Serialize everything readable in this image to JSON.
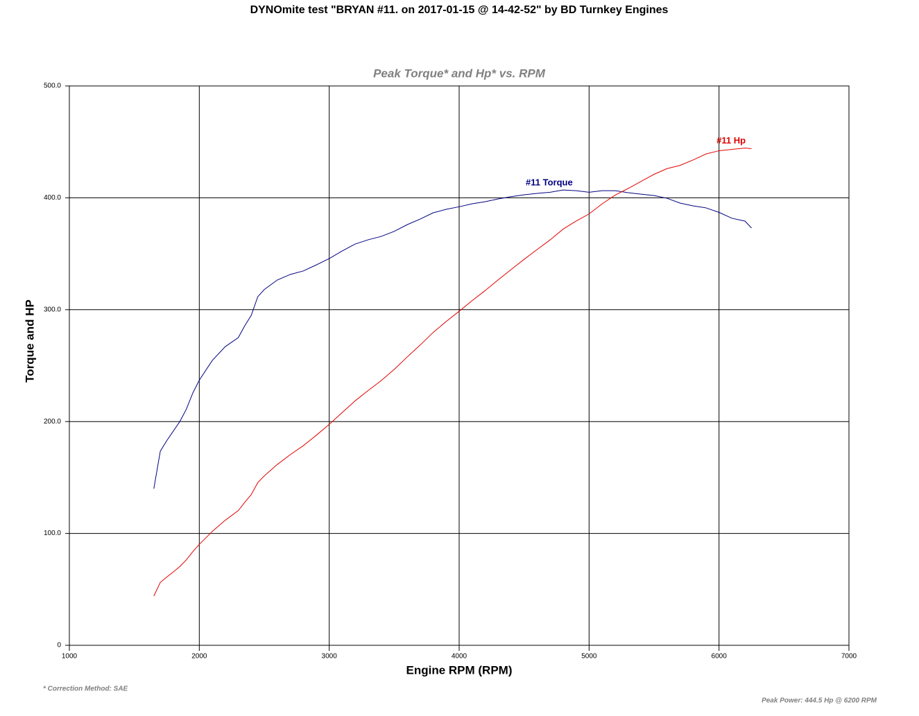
{
  "chart_data": {
    "type": "line",
    "title": "DYNOmite test \"BRYAN #11. on 2017-01-15 @ 14-42-52\" by BD Turnkey Engines",
    "subtitle": "Peak Torque* and Hp* vs. RPM",
    "x_label": "Engine RPM (RPM)",
    "y_label": "Torque and HP",
    "footnote": "* Correction Method: SAE",
    "peak_note": "Peak Power: 444.5 Hp @ 6200 RPM",
    "x": [
      1650,
      1700,
      1750,
      1800,
      1850,
      1900,
      1950,
      2000,
      2100,
      2200,
      2300,
      2350,
      2400,
      2450,
      2500,
      2600,
      2700,
      2800,
      2900,
      3000,
      3100,
      3200,
      3300,
      3400,
      3500,
      3600,
      3700,
      3800,
      3900,
      4000,
      4100,
      4200,
      4300,
      4400,
      4500,
      4600,
      4700,
      4800,
      4900,
      5000,
      5100,
      5200,
      5300,
      5400,
      5500,
      5600,
      5700,
      5800,
      5900,
      6000,
      6100,
      6200,
      6250
    ],
    "series": [
      {
        "name": "#11 Torque",
        "color": "#000080",
        "values": [
          140,
          173.5,
          183,
          191.5,
          200,
          211,
          225.5,
          237,
          254.6,
          267,
          275,
          285.6,
          295,
          311.6,
          318,
          326.5,
          331.5,
          334.6,
          340,
          345.7,
          352.5,
          358.7,
          362.5,
          365.5,
          370,
          376,
          381,
          386.6,
          389.7,
          392,
          394.7,
          396.5,
          399,
          401,
          402.7,
          404,
          405,
          407,
          406.4,
          405,
          406.4,
          406.4,
          404.6,
          403.3,
          402,
          399.6,
          395.3,
          392.8,
          391,
          387,
          381.7,
          379.2,
          373
        ]
      },
      {
        "name": "#11 Hp",
        "color": "#e00000",
        "values": [
          44,
          56.2,
          61,
          65.6,
          70.4,
          76.3,
          83.7,
          90.2,
          101.8,
          111.8,
          120.4,
          127.8,
          134.8,
          145.4,
          151.4,
          161.6,
          170.4,
          178.4,
          187.7,
          197.5,
          208.1,
          218.6,
          227.8,
          236.6,
          246.6,
          257.7,
          268.4,
          279.7,
          289.4,
          298.6,
          308.1,
          317.1,
          326.7,
          335.9,
          345,
          353.8,
          362.4,
          372,
          379.2,
          385.6,
          394.6,
          402.4,
          408.3,
          414.7,
          421,
          426.1,
          429,
          433.8,
          439.2,
          442.1,
          443.3,
          444.5,
          443.9
        ]
      }
    ],
    "xlim": [
      1000,
      7000
    ],
    "xticks": [
      1000,
      2000,
      3000,
      4000,
      5000,
      6000,
      7000
    ],
    "ylim": [
      0,
      500
    ],
    "yticks": [
      0,
      {
        "value": 100,
        "label": "100.0"
      },
      {
        "value": 200,
        "label": "200.0"
      },
      {
        "value": 300,
        "label": "300.0"
      },
      {
        "value": 400,
        "label": "400.0"
      },
      {
        "value": 500,
        "label": "500.0"
      }
    ],
    "grid": true
  }
}
